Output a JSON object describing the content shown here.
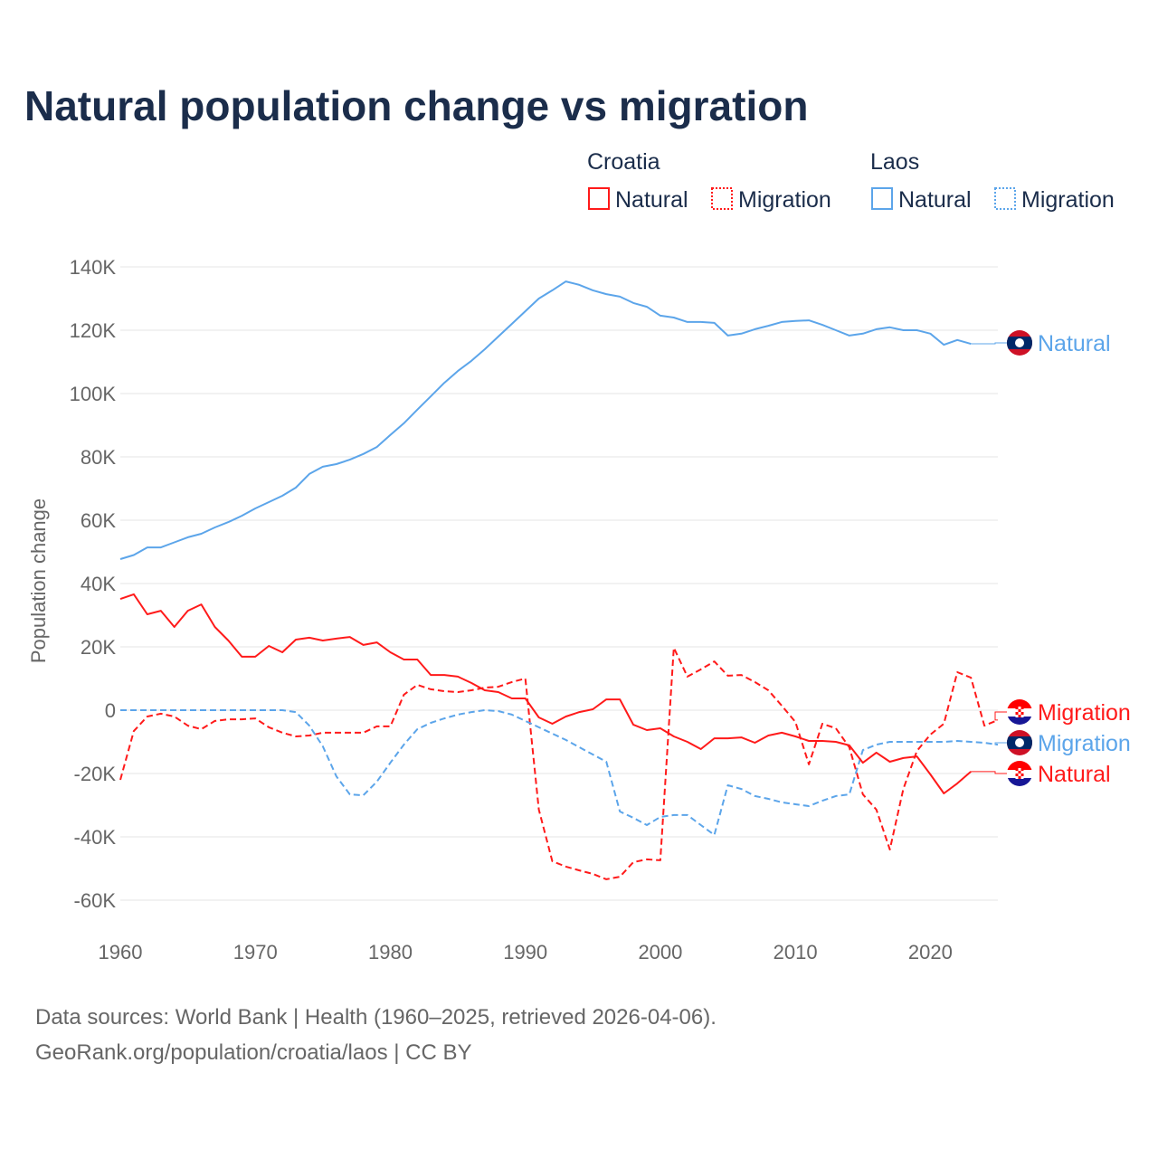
{
  "chart_data": {
    "type": "line",
    "title": "Natural population change vs migration",
    "xlabel": "",
    "ylabel": "Population change",
    "xlim": [
      1960,
      2025
    ],
    "ylim": [
      -70000,
      140000
    ],
    "x_ticks": [
      "1960",
      "1970",
      "1980",
      "1990",
      "2000",
      "2010",
      "2020"
    ],
    "x_tick_values": [
      1960,
      1970,
      1980,
      1990,
      2000,
      2010,
      2020
    ],
    "y_ticks": [
      "140K",
      "120K",
      "100K",
      "80K",
      "60K",
      "40K",
      "20K",
      "0",
      "-20K",
      "-40K",
      "-60K"
    ],
    "y_tick_values": [
      140000,
      120000,
      100000,
      80000,
      60000,
      40000,
      20000,
      0,
      -20000,
      -40000,
      -60000
    ],
    "grid": true,
    "legend": {
      "placement": "top-right",
      "groups": [
        {
          "label": "Croatia",
          "items": [
            "Natural",
            "Migration"
          ]
        },
        {
          "label": "Laos",
          "items": [
            "Natural",
            "Migration"
          ]
        }
      ]
    },
    "colors": {
      "croatia": "#ff1a1a",
      "laos": "#5ca5ea"
    },
    "series": [
      {
        "name": "Laos Natural",
        "country": "laos",
        "dash": false,
        "end_label": "Natural",
        "start_year": 1960,
        "values": [
          47.7,
          49,
          51.4,
          51.4,
          53,
          54.6,
          55.7,
          57.7,
          59.4,
          61.4,
          63.7,
          65.7,
          67.7,
          70.3,
          74.6,
          76.9,
          77.7,
          79.1,
          80.9,
          83.1,
          86.9,
          90.6,
          94.9,
          99.1,
          103.4,
          107.1,
          110.3,
          114,
          118,
          122,
          126,
          130,
          132.6,
          135.4,
          134.3,
          132.6,
          131.4,
          130.6,
          128.6,
          127.4,
          124.6,
          124,
          122.6,
          122.6,
          122.3,
          118.3,
          118.9,
          120.3,
          121.4,
          122.6,
          122.9,
          123.1,
          121.7,
          120,
          118.3,
          118.9,
          120.3,
          120.9,
          120,
          120,
          118.9,
          115.4,
          116.9,
          115.7
        ]
      },
      {
        "name": "Croatia Migration",
        "country": "croatia",
        "dash": true,
        "end_label": "Migration",
        "start_year": 1960,
        "values": [
          -22,
          -6.6,
          -2,
          -1.1,
          -2,
          -4.9,
          -6,
          -3.4,
          -2.9,
          -2.9,
          -2.6,
          -5.4,
          -7.1,
          -8.3,
          -8,
          -7.1,
          -7.1,
          -7.1,
          -7.1,
          -5.1,
          -5.1,
          4.9,
          8,
          6.6,
          6,
          5.7,
          6.3,
          7.1,
          7.4,
          8.9,
          10,
          -31.4,
          -47.7,
          -49.4,
          -50.6,
          -51.7,
          -53.4,
          -52.6,
          -48,
          -47.1,
          -47.4,
          19.7,
          10.6,
          12.9,
          15.4,
          10.9,
          11.1,
          8.9,
          6.3,
          1.4,
          -3.7,
          -17.1,
          -4.3,
          -5.7,
          -11.7,
          -26.6,
          -31.4,
          -44,
          -24.9,
          -12.9,
          -7.7,
          -4.3,
          12,
          10.3,
          -4.9,
          -3.1
        ]
      },
      {
        "name": "Laos Migration",
        "country": "laos",
        "dash": true,
        "end_label": "Migration",
        "start_year": 1960,
        "values": [
          0,
          0,
          0,
          0,
          0,
          0,
          0,
          0,
          0,
          0,
          0,
          0,
          0,
          -0.6,
          -4.9,
          -11.4,
          -20.9,
          -26.6,
          -26.9,
          -22.6,
          -16.6,
          -10.9,
          -6,
          -4,
          -2.6,
          -1.4,
          -0.6,
          0,
          -0.3,
          -1.4,
          -3.4,
          -5.4,
          -7.4,
          -9.4,
          -11.7,
          -14,
          -16.3,
          -32,
          -34,
          -36.3,
          -33.7,
          -33.1,
          -33.1,
          -36.3,
          -39.4,
          -23.7,
          -24.9,
          -27.1,
          -28,
          -29.1,
          -29.7,
          -30.3,
          -28.6,
          -27.1,
          -26.6,
          -12.6,
          -10.9,
          -10,
          -10,
          -10,
          -10,
          -10,
          -9.7,
          -10,
          -10.3,
          -10.9
        ]
      },
      {
        "name": "Croatia Natural",
        "country": "croatia",
        "dash": false,
        "end_label": "Natural",
        "start_year": 1960,
        "values": [
          35.1,
          36.6,
          30.3,
          31.4,
          26.3,
          31.4,
          33.4,
          26.3,
          22,
          16.9,
          16.9,
          20.3,
          18.3,
          22.3,
          22.9,
          22,
          22.6,
          23.1,
          20.6,
          21.4,
          18.3,
          16,
          16,
          11.1,
          11.1,
          10.6,
          8.6,
          6.3,
          5.7,
          3.7,
          3.7,
          -2.3,
          -4.3,
          -2,
          -0.6,
          0.3,
          3.4,
          3.4,
          -4.6,
          -6.3,
          -5.7,
          -8.3,
          -10,
          -12.3,
          -8.9,
          -8.9,
          -8.6,
          -10.3,
          -8,
          -7.1,
          -8.3,
          -9.7,
          -9.7,
          -10,
          -11.1,
          -16.6,
          -13.4,
          -16.3,
          -15.1,
          -14.6,
          -20.3,
          -26.3,
          -23.1,
          -19.4
        ]
      }
    ],
    "value_unit": "thousands"
  },
  "footer": {
    "line1": "Data sources: World Bank | Health (1960–2025, retrieved 2026-04-06).",
    "line2": "GeoRank.org/population/croatia/laos | CC BY"
  }
}
